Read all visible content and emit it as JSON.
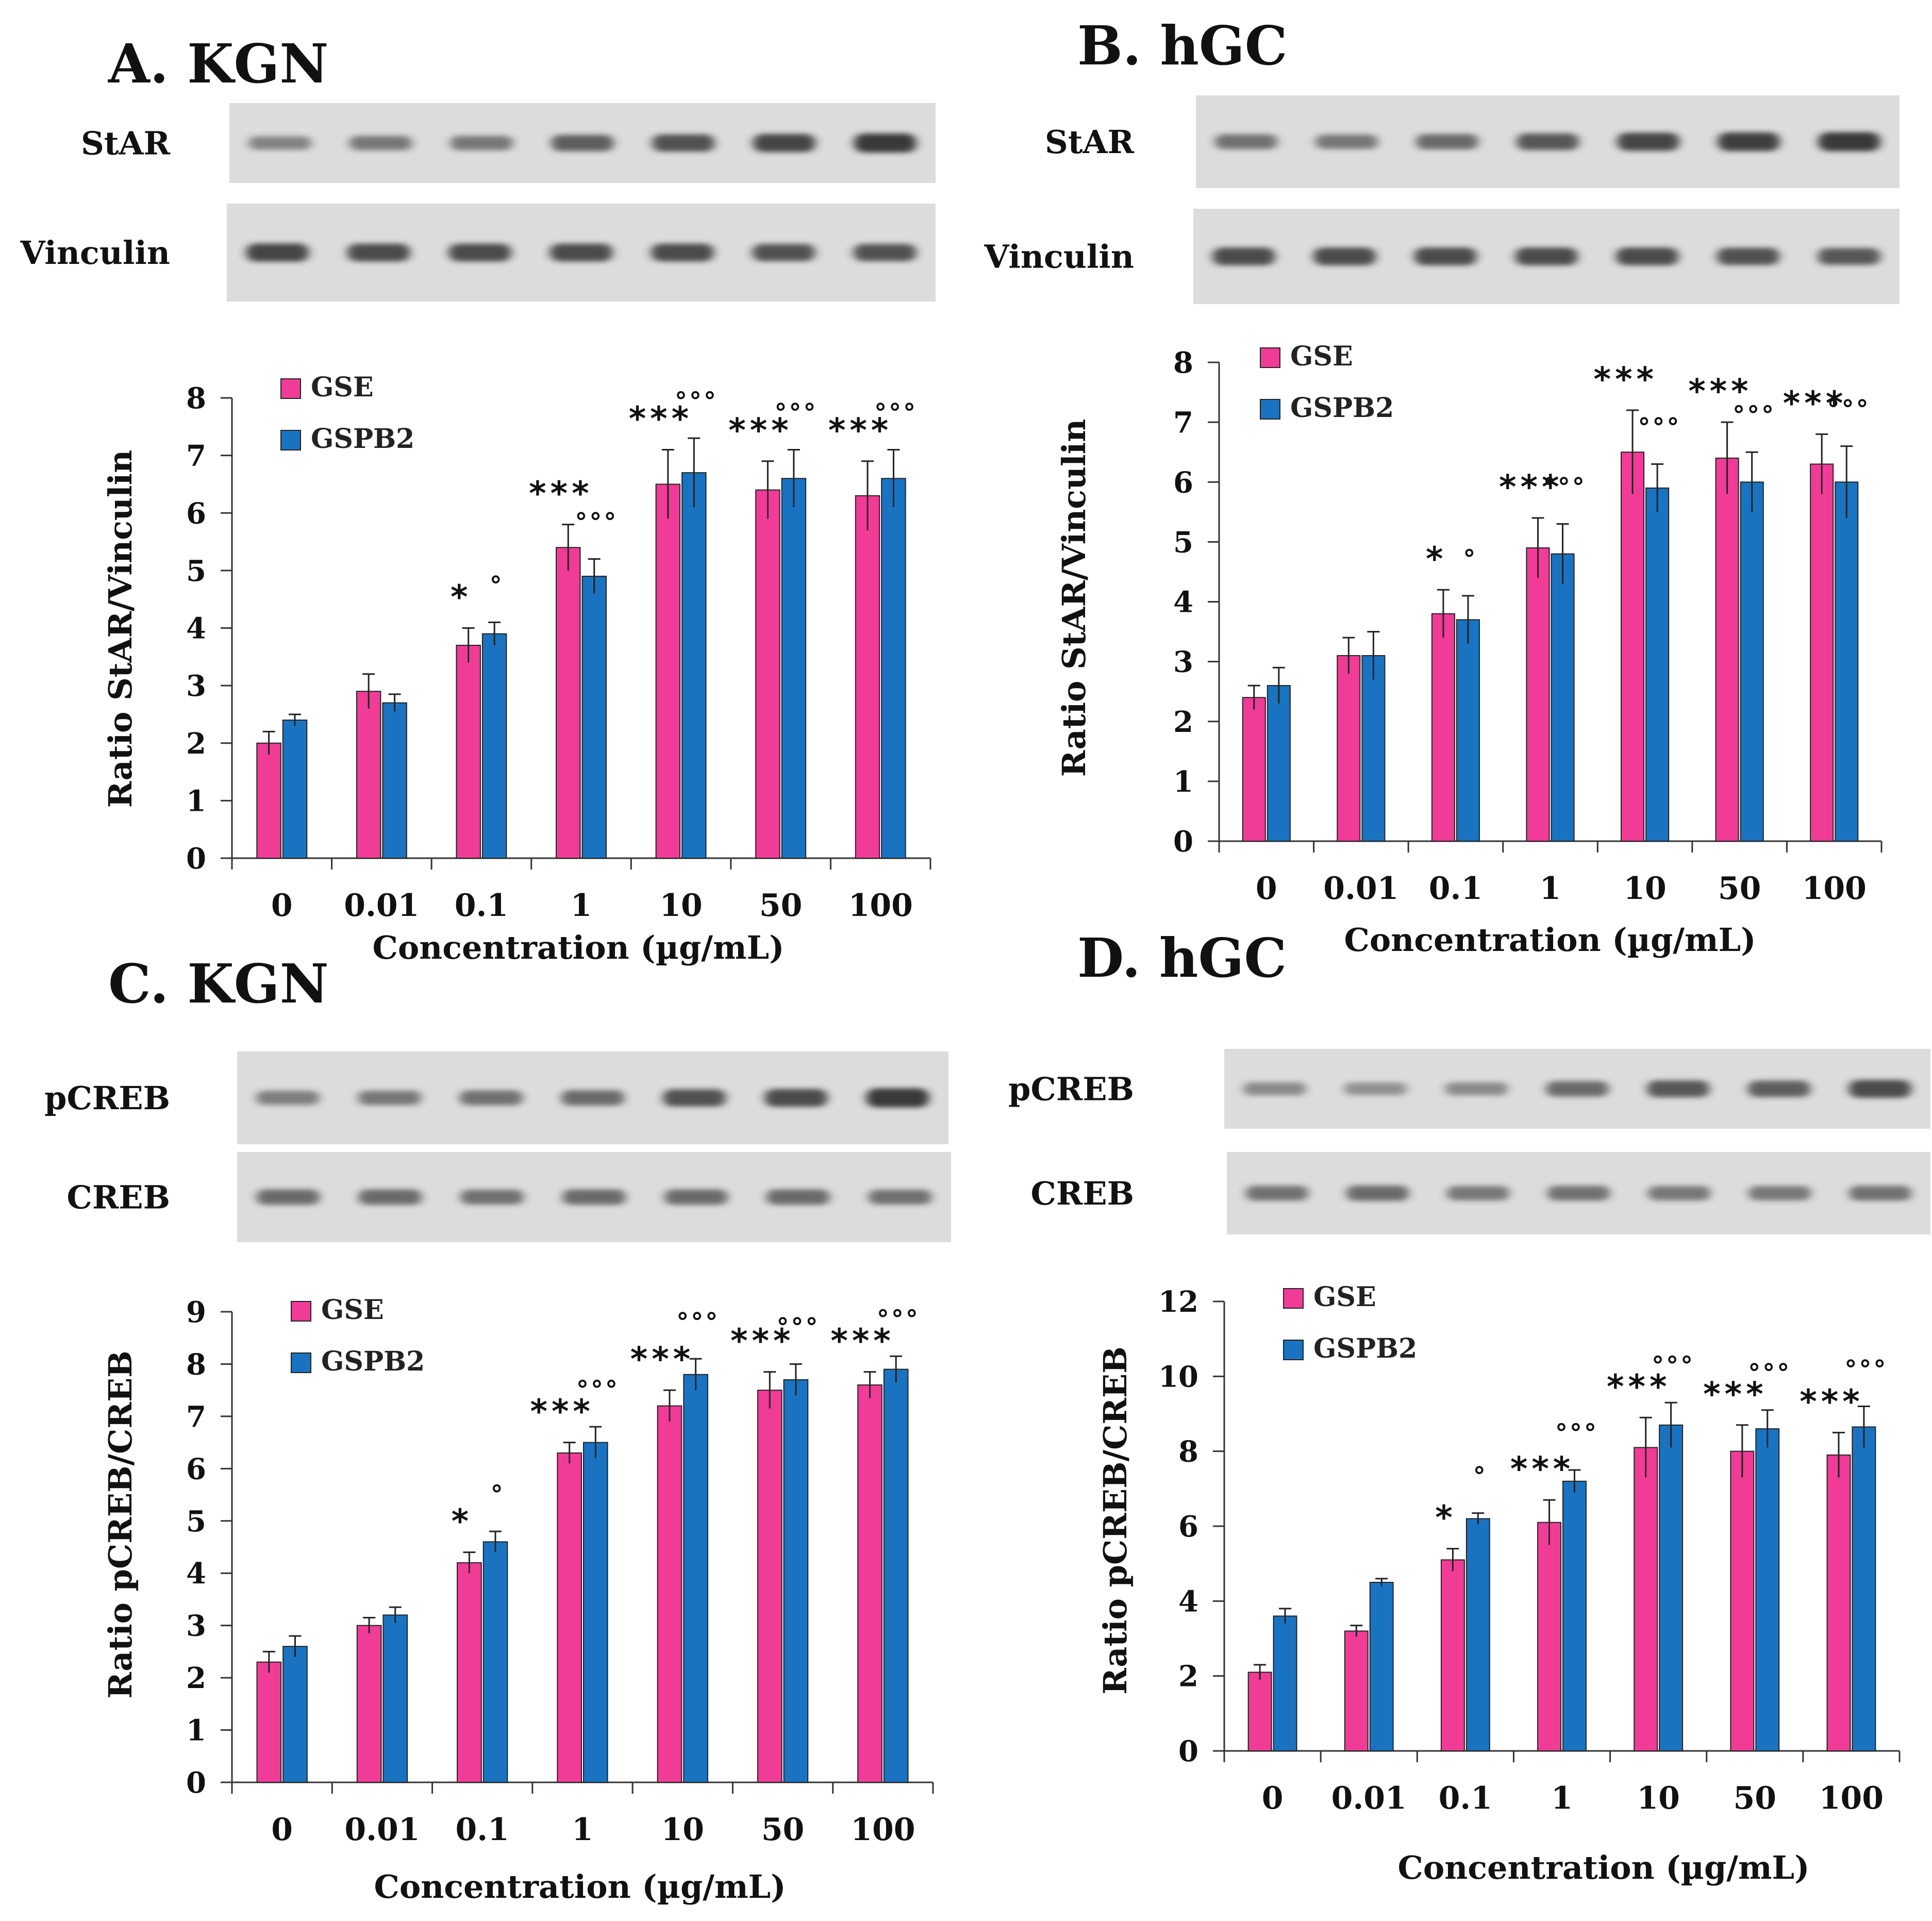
{
  "colors": {
    "gse": "#f03c97",
    "gspb2": "#1a73c0",
    "blot_bg": "#dcdcdc",
    "band": "#2b2b2b"
  },
  "panels": [
    {
      "id": "A",
      "title": "A. KGN",
      "blots": [
        {
          "label": "StAR",
          "intensity": [
            0.35,
            0.45,
            0.45,
            0.65,
            0.75,
            0.85,
            0.95
          ]
        },
        {
          "label": "Vinculin",
          "intensity": [
            0.85,
            0.8,
            0.8,
            0.8,
            0.8,
            0.75,
            0.75
          ]
        }
      ],
      "chart_data": {
        "type": "bar",
        "title": "",
        "xlabel": "Concentration (µg/mL)",
        "ylabel": "Ratio StAR/Vinculin",
        "categories": [
          "0",
          "0.01",
          "0.1",
          "1",
          "10",
          "50",
          "100"
        ],
        "ylim": [
          0,
          8
        ],
        "yticks": [
          0,
          1,
          2,
          3,
          4,
          5,
          6,
          7,
          8
        ],
        "series": [
          {
            "name": "GSE",
            "values": [
              2.0,
              2.9,
              3.7,
              5.4,
              6.5,
              6.4,
              6.3
            ],
            "errors": [
              0.2,
              0.3,
              0.3,
              0.4,
              0.6,
              0.5,
              0.6
            ],
            "sig": [
              "",
              "",
              "*",
              "***",
              "***",
              "***",
              "***"
            ]
          },
          {
            "name": "GSPB2",
            "values": [
              2.4,
              2.7,
              3.9,
              4.9,
              6.7,
              6.6,
              6.6
            ],
            "errors": [
              0.1,
              0.15,
              0.2,
              0.3,
              0.6,
              0.5,
              0.5
            ],
            "sig": [
              "",
              "",
              "°",
              "°°°",
              "°°°",
              "°°°",
              "°°°"
            ]
          }
        ],
        "legend": "top-left"
      }
    },
    {
      "id": "B",
      "title": "B. hGC",
      "blots": [
        {
          "label": "StAR",
          "intensity": [
            0.5,
            0.45,
            0.55,
            0.7,
            0.85,
            0.9,
            0.95
          ]
        },
        {
          "label": "Vinculin",
          "intensity": [
            0.8,
            0.8,
            0.8,
            0.8,
            0.8,
            0.75,
            0.7
          ]
        }
      ],
      "chart_data": {
        "type": "bar",
        "title": "",
        "xlabel": "Concentration (µg/mL)",
        "ylabel": "Ratio StAR/Vinculin",
        "categories": [
          "0",
          "0.01",
          "0.1",
          "1",
          "10",
          "50",
          "100"
        ],
        "ylim": [
          0,
          8
        ],
        "yticks": [
          0,
          1,
          2,
          3,
          4,
          5,
          6,
          7,
          8
        ],
        "series": [
          {
            "name": "GSE",
            "values": [
              2.4,
              3.1,
              3.8,
              4.9,
              6.5,
              6.4,
              6.3
            ],
            "errors": [
              0.2,
              0.3,
              0.4,
              0.5,
              0.7,
              0.6,
              0.5
            ],
            "sig": [
              "",
              "",
              "*",
              "***",
              "***",
              "***",
              "***"
            ]
          },
          {
            "name": "GSPB2",
            "values": [
              2.6,
              3.1,
              3.7,
              4.8,
              5.9,
              6.0,
              6.0
            ],
            "errors": [
              0.3,
              0.4,
              0.4,
              0.5,
              0.4,
              0.5,
              0.6
            ],
            "sig": [
              "",
              "",
              "°",
              "°°°",
              "°°°",
              "°°°",
              "°°°"
            ]
          }
        ],
        "legend": "top-left"
      }
    },
    {
      "id": "C",
      "title": "C. KGN",
      "blots": [
        {
          "label": "pCREB",
          "intensity": [
            0.4,
            0.45,
            0.5,
            0.55,
            0.75,
            0.8,
            0.95
          ]
        },
        {
          "label": "CREB",
          "intensity": [
            0.55,
            0.55,
            0.5,
            0.55,
            0.55,
            0.55,
            0.5
          ]
        }
      ],
      "chart_data": {
        "type": "bar",
        "title": "",
        "xlabel": "Concentration (µg/mL)",
        "ylabel": "Ratio pCREB/CREB",
        "categories": [
          "0",
          "0.01",
          "0.1",
          "1",
          "10",
          "50",
          "100"
        ],
        "ylim": [
          0,
          9
        ],
        "yticks": [
          0,
          1,
          2,
          3,
          4,
          5,
          6,
          7,
          8,
          9
        ],
        "series": [
          {
            "name": "GSE",
            "values": [
              2.3,
              3.0,
              4.2,
              6.3,
              7.2,
              7.5,
              7.6
            ],
            "errors": [
              0.2,
              0.15,
              0.2,
              0.2,
              0.3,
              0.35,
              0.25
            ],
            "sig": [
              "",
              "",
              "*",
              "***",
              "***",
              "***",
              "***"
            ]
          },
          {
            "name": "GSPB2",
            "values": [
              2.6,
              3.2,
              4.6,
              6.5,
              7.8,
              7.7,
              7.9
            ],
            "errors": [
              0.2,
              0.15,
              0.2,
              0.3,
              0.3,
              0.3,
              0.25
            ],
            "sig": [
              "",
              "",
              "°",
              "°°°",
              "°°°",
              "°°°",
              "°°°"
            ]
          }
        ],
        "legend": "top-left"
      }
    },
    {
      "id": "D",
      "title": "D. hGC",
      "blots": [
        {
          "label": "pCREB",
          "intensity": [
            0.3,
            0.25,
            0.3,
            0.55,
            0.7,
            0.65,
            0.8
          ]
        },
        {
          "label": "CREB",
          "intensity": [
            0.5,
            0.55,
            0.45,
            0.5,
            0.45,
            0.45,
            0.5
          ]
        }
      ],
      "chart_data": {
        "type": "bar",
        "title": "",
        "xlabel": "Concentration (µg/mL)",
        "ylabel": "Ratio pCREB/CREB",
        "categories": [
          "0",
          "0.01",
          "0.1",
          "1",
          "10",
          "50",
          "100"
        ],
        "ylim": [
          0,
          12
        ],
        "yticks": [
          0,
          2,
          4,
          6,
          8,
          10,
          12
        ],
        "series": [
          {
            "name": "GSE",
            "values": [
              2.1,
              3.2,
              5.1,
              6.1,
              8.1,
              8.0,
              7.9
            ],
            "errors": [
              0.2,
              0.15,
              0.3,
              0.6,
              0.8,
              0.7,
              0.6
            ],
            "sig": [
              "",
              "",
              "*",
              "***",
              "***",
              "***",
              "***"
            ]
          },
          {
            "name": "GSPB2",
            "values": [
              3.6,
              4.5,
              6.2,
              7.2,
              8.7,
              8.6,
              8.65
            ],
            "errors": [
              0.2,
              0.1,
              0.15,
              0.3,
              0.6,
              0.5,
              0.55
            ],
            "sig": [
              "",
              "",
              "°",
              "°°°",
              "°°°",
              "°°°",
              "°°°"
            ]
          }
        ],
        "legend": "top-left"
      }
    }
  ]
}
